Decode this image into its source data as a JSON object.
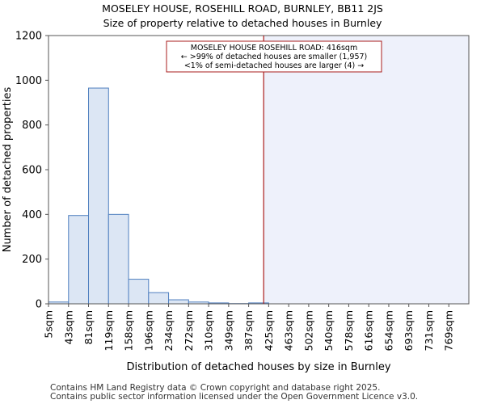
{
  "chart_data": {
    "type": "bar",
    "title": "MOSELEY HOUSE, ROSEHILL ROAD, BURNLEY, BB11 2JS",
    "subtitle": "Size of property relative to detached houses in Burnley",
    "xlabel": "Distribution of detached houses by size in Burnley",
    "ylabel": "Number of detached properties",
    "ylim": [
      0,
      1200
    ],
    "yticks": [
      0,
      200,
      400,
      600,
      800,
      1000,
      1200
    ],
    "categories": [
      "5sqm",
      "43sqm",
      "81sqm",
      "119sqm",
      "158sqm",
      "196sqm",
      "234sqm",
      "272sqm",
      "310sqm",
      "349sqm",
      "387sqm",
      "425sqm",
      "463sqm",
      "502sqm",
      "540sqm",
      "578sqm",
      "616sqm",
      "654sqm",
      "693sqm",
      "731sqm",
      "769sqm"
    ],
    "values": [
      8,
      395,
      965,
      400,
      110,
      50,
      18,
      8,
      4,
      1,
      4,
      0,
      0,
      0,
      0,
      0,
      0,
      0,
      0,
      0,
      0
    ],
    "property_marker": {
      "label_lines": [
        "MOSELEY HOUSE ROSEHILL ROAD: 416sqm",
        "← >99% of detached houses are smaller (1,957)",
        "<1% of semi-detached houses are larger (4) →"
      ],
      "bin_position": 10.75
    },
    "colors": {
      "bar_fill": "#dce6f4",
      "bar_edge": "#4f7fbf",
      "marker": "#aa1e1e",
      "highlight": "#eef1fb"
    }
  },
  "footer": {
    "line1": "Contains HM Land Registry data © Crown copyright and database right 2025.",
    "line2": "Contains public sector information licensed under the Open Government Licence v3.0."
  }
}
